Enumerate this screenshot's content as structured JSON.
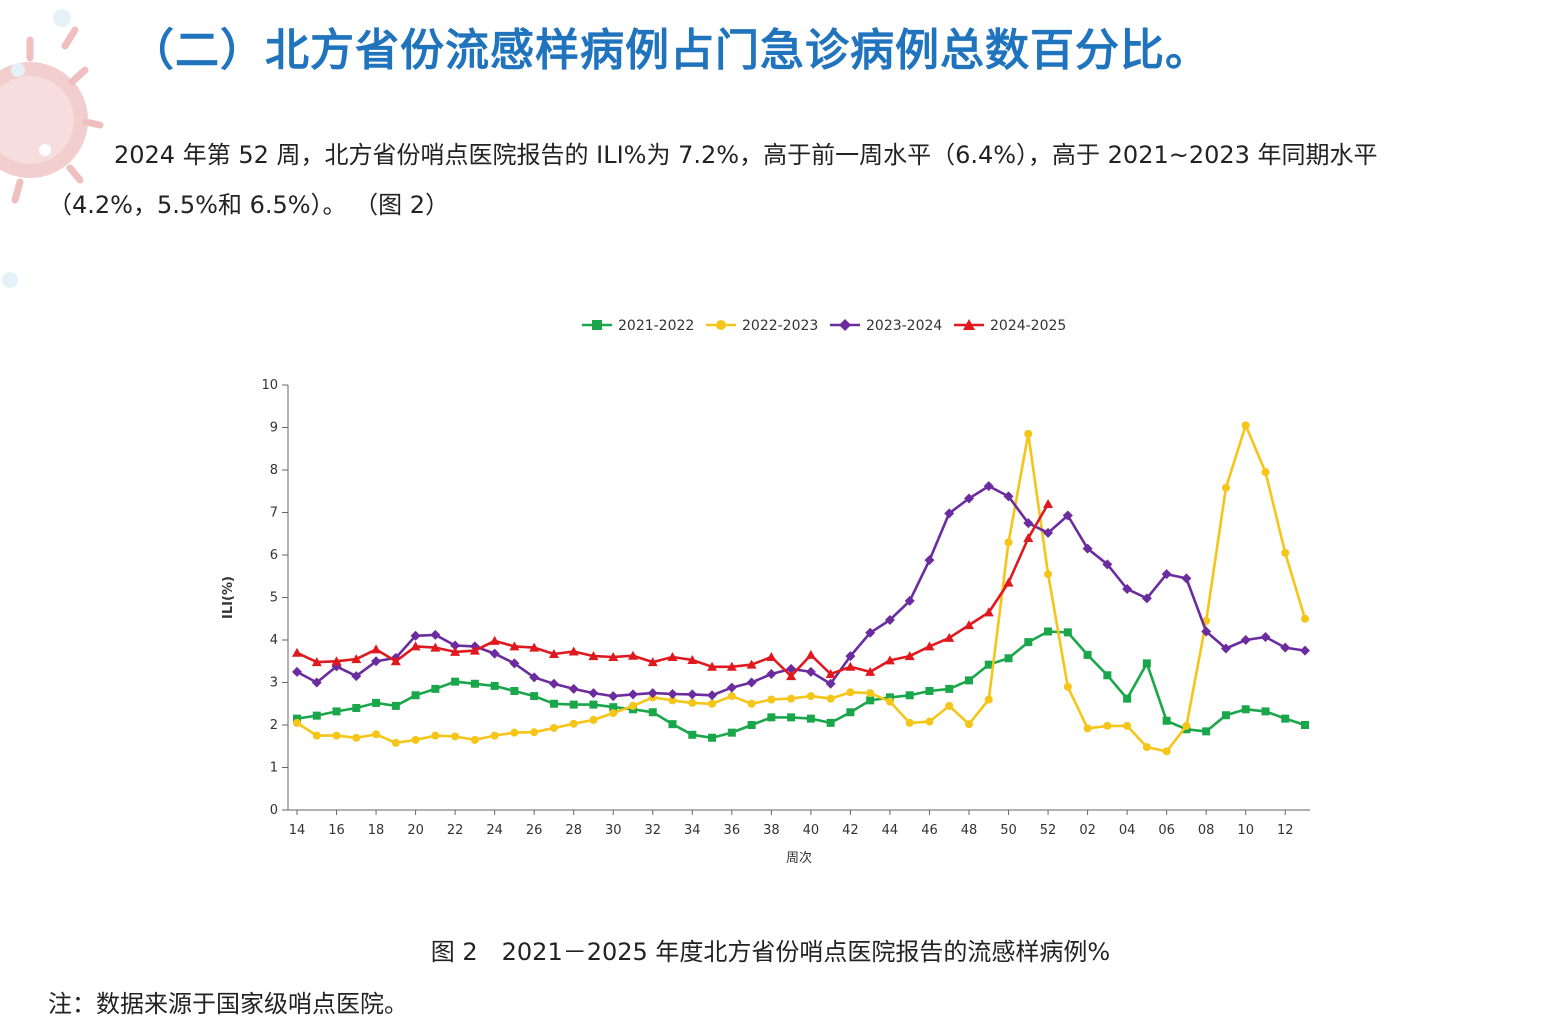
{
  "header": {
    "title": "（二）北方省份流感样病例占门急诊病例总数百分比。"
  },
  "paragraph": "2024 年第 52 周，北方省份哨点医院报告的 ILI%为 7.2%，高于前一周水平（6.4%），高于 2021~2023 年同期水平（4.2%，5.5%和 6.5%）。 （图 2）",
  "figure": {
    "caption": "图 2　2021－2025 年度北方省份哨点医院报告的流感样病例%",
    "note": "注：数据来源于国家级哨点医院。"
  },
  "colors": {
    "title": "#1f74bd",
    "s2021": "#1aa64a",
    "s2022": "#f5c518",
    "s2023": "#6a2c9e",
    "s2024": "#e0191f"
  },
  "chart_data": {
    "type": "line",
    "xlabel": "周次",
    "ylabel": "ILI(%)",
    "ylim": [
      0,
      10
    ],
    "yticks": [
      0,
      1,
      2,
      3,
      4,
      5,
      6,
      7,
      8,
      9,
      10
    ],
    "x": [
      "14",
      "15",
      "16",
      "17",
      "18",
      "19",
      "20",
      "21",
      "22",
      "23",
      "24",
      "25",
      "26",
      "27",
      "28",
      "29",
      "30",
      "31",
      "32",
      "33",
      "34",
      "35",
      "36",
      "37",
      "38",
      "39",
      "40",
      "41",
      "42",
      "43",
      "44",
      "45",
      "46",
      "47",
      "48",
      "49",
      "50",
      "51",
      "52",
      "01",
      "02",
      "03",
      "04",
      "05",
      "06",
      "07",
      "08",
      "09",
      "10",
      "11",
      "12",
      "13"
    ],
    "xticks": [
      "14",
      "16",
      "18",
      "20",
      "22",
      "24",
      "26",
      "28",
      "30",
      "32",
      "34",
      "36",
      "38",
      "40",
      "42",
      "44",
      "46",
      "48",
      "50",
      "52",
      "02",
      "04",
      "06",
      "08",
      "10",
      "12"
    ],
    "grid": false,
    "legend_position": "top",
    "series": [
      {
        "name": "2021-2022",
        "marker": "square",
        "color": "#1aa64a",
        "values": [
          2.15,
          2.22,
          2.32,
          2.4,
          2.52,
          2.45,
          2.7,
          2.85,
          3.02,
          2.97,
          2.92,
          2.8,
          2.68,
          2.5,
          2.48,
          2.48,
          2.42,
          2.37,
          2.3,
          2.02,
          1.77,
          1.7,
          1.82,
          2.0,
          2.18,
          2.18,
          2.15,
          2.05,
          2.3,
          2.58,
          2.65,
          2.7,
          2.8,
          2.85,
          3.05,
          3.42,
          3.57,
          3.95,
          4.2,
          4.18,
          3.65,
          3.17,
          2.62,
          3.45,
          2.1,
          1.9,
          1.85,
          2.23,
          2.37,
          2.32,
          2.15,
          2.0
        ]
      },
      {
        "name": "2022-2023",
        "marker": "circle",
        "color": "#f5c518",
        "values": [
          2.05,
          1.75,
          1.75,
          1.7,
          1.78,
          1.58,
          1.65,
          1.75,
          1.73,
          1.65,
          1.75,
          1.82,
          1.83,
          1.93,
          2.03,
          2.12,
          2.28,
          2.45,
          2.65,
          2.58,
          2.52,
          2.5,
          2.68,
          2.5,
          2.6,
          2.62,
          2.68,
          2.62,
          2.77,
          2.75,
          2.55,
          2.05,
          2.08,
          2.45,
          2.02,
          2.6,
          6.3,
          8.85,
          5.55,
          2.9,
          1.92,
          1.98,
          1.98,
          1.48,
          1.38,
          1.98,
          4.45,
          7.58,
          9.05,
          7.95,
          6.05,
          4.5
        ]
      },
      {
        "name": "2023-2024",
        "marker": "diamond",
        "color": "#6a2c9e",
        "values": [
          3.25,
          3.0,
          3.38,
          3.15,
          3.5,
          3.58,
          4.1,
          4.12,
          3.87,
          3.85,
          3.68,
          3.45,
          3.12,
          2.97,
          2.85,
          2.75,
          2.68,
          2.72,
          2.75,
          2.73,
          2.72,
          2.7,
          2.88,
          3.0,
          3.2,
          3.32,
          3.25,
          2.97,
          3.62,
          4.17,
          4.47,
          4.92,
          5.88,
          6.98,
          7.33,
          7.62,
          7.38,
          6.75,
          6.52,
          6.93,
          6.15,
          5.78,
          5.2,
          4.98,
          5.55,
          5.45,
          4.2,
          3.8,
          4.0,
          4.07,
          3.82,
          3.75
        ]
      },
      {
        "name": "2024-2025",
        "marker": "triangle",
        "color": "#e0191f",
        "values": [
          3.7,
          3.48,
          3.5,
          3.55,
          3.78,
          3.5,
          3.85,
          3.82,
          3.72,
          3.75,
          3.98,
          3.85,
          3.82,
          3.67,
          3.73,
          3.62,
          3.6,
          3.63,
          3.48,
          3.6,
          3.53,
          3.37,
          3.37,
          3.42,
          3.6,
          3.15,
          3.65,
          3.2,
          3.37,
          3.25,
          3.52,
          3.62,
          3.85,
          4.05,
          4.35,
          4.65,
          5.35,
          6.4,
          7.2,
          null,
          null,
          null,
          null,
          null,
          null,
          null,
          null,
          null,
          null,
          null,
          null,
          null
        ]
      }
    ]
  }
}
